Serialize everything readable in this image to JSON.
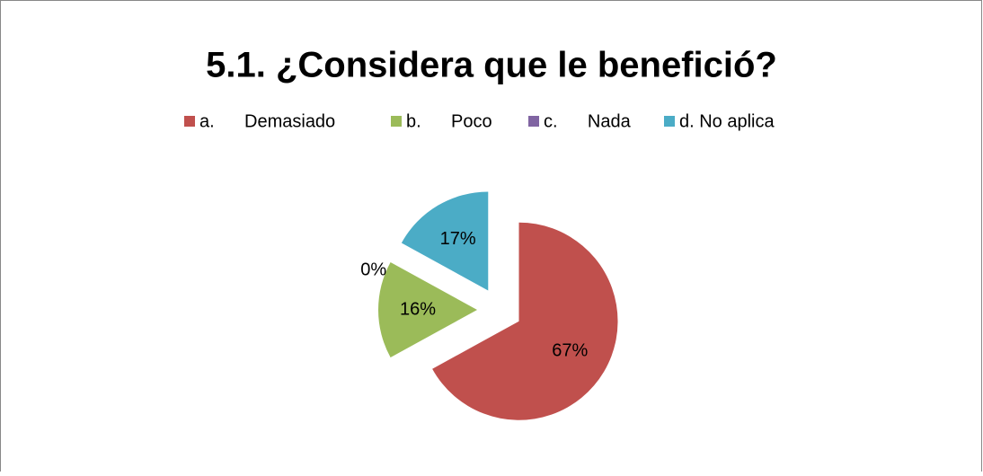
{
  "chart_data": {
    "type": "pie",
    "title": "5.1. ¿Considera que le benefició?",
    "categories": [
      "a.      Demasiado",
      "b.      Poco",
      "c.      Nada",
      "d. No aplica"
    ],
    "values": [
      67,
      16,
      0,
      17
    ],
    "value_labels": [
      "67%",
      "16%",
      "0%",
      "17%"
    ],
    "colors": [
      "#c0504d",
      "#9bbb59",
      "#8064a2",
      "#4bacc6"
    ],
    "legend": "top"
  }
}
